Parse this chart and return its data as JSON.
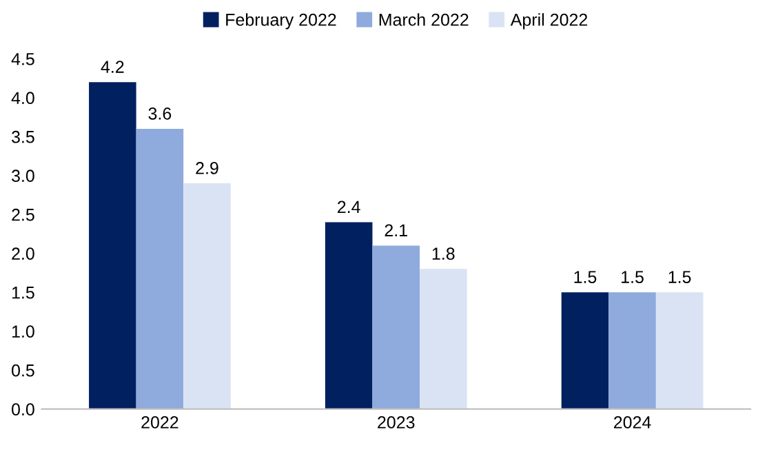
{
  "chart_data": {
    "type": "bar",
    "categories": [
      "2022",
      "2023",
      "2024"
    ],
    "series": [
      {
        "name": "February 2022",
        "color": "#002060",
        "values": [
          4.2,
          2.4,
          1.5
        ]
      },
      {
        "name": "March 2022",
        "color": "#8faadc",
        "values": [
          3.6,
          2.1,
          1.5
        ]
      },
      {
        "name": "April 2022",
        "color": "#dae3f3",
        "values": [
          2.9,
          1.8,
          1.5
        ]
      }
    ],
    "ylim": [
      0,
      4.5
    ],
    "yticks": [
      {
        "value": 0,
        "label": "0.0"
      },
      0.5,
      {
        "value": 1,
        "label": "1.0"
      },
      1.5,
      {
        "value": 2,
        "label": "2.0"
      },
      2.5,
      {
        "value": 3,
        "label": "3.0"
      },
      3.5,
      {
        "value": 4,
        "label": "4.0"
      },
      4.5
    ],
    "data_labels": true,
    "grid": false,
    "legend": "top"
  }
}
